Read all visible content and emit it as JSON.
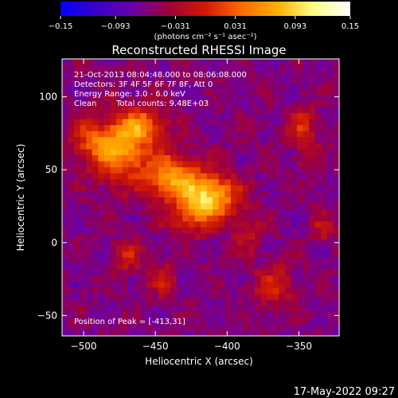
{
  "colorbar": {
    "min": -0.15,
    "max": 0.15,
    "ticks": [
      "-0.15",
      "-0.093",
      "-0.031",
      "0.031",
      "0.093",
      "0.15"
    ],
    "tick_values": [
      -0.15,
      -0.093,
      -0.031,
      0.031,
      0.093,
      0.15
    ],
    "unit_label": "(photons cm⁻² s⁻¹ asec⁻²)",
    "colormap": [
      "#0000ff",
      "#3a00c8",
      "#6a00a8",
      "#a0003a",
      "#d01a00",
      "#ff6a00",
      "#ffb000",
      "#ffff88",
      "#ffffff"
    ]
  },
  "title": "Reconstructed RHESSI Image",
  "annotations": {
    "time_range": "21-Oct-2013 08:04:48.000 to 08:06:08.000",
    "detectors": "Detectors: 3F 4F 5F 6F 7F 8F, Att 0",
    "energy": "Energy Range: 3.0 - 6.0 keV",
    "clean": "Clean",
    "total_counts": "Total counts: 9.48E+03",
    "peak": "Position of Peak = [-413,31]"
  },
  "footer_timestamp": "17-May-2022 09:27",
  "chart_data": {
    "type": "heatmap",
    "title": "Reconstructed RHESSI Image",
    "xlabel": "Heliocentric X (arcsec)",
    "ylabel": "Heliocentric Y (arcsec)",
    "xlim": [
      -515,
      -322
    ],
    "ylim": [
      -64,
      126
    ],
    "x_ticks": [
      -500,
      -450,
      -400,
      -350
    ],
    "y_ticks": [
      -50,
      0,
      50,
      100
    ],
    "x_tick_labels": [
      "−500",
      "−450",
      "−400",
      "−350"
    ],
    "y_tick_labels": [
      "−50",
      "0",
      "50",
      "100"
    ],
    "value_range": [
      -0.15,
      0.15
    ],
    "peak_position": [
      -413,
      31
    ],
    "sources": [
      {
        "x": -413,
        "y": 31,
        "amplitude": 0.15,
        "sigma_x": 14,
        "sigma_y": 11
      },
      {
        "x": -440,
        "y": 45,
        "amplitude": 0.11,
        "sigma_x": 13,
        "sigma_y": 11
      },
      {
        "x": -476,
        "y": 63,
        "amplitude": 0.12,
        "sigma_x": 14,
        "sigma_y": 14
      },
      {
        "x": -460,
        "y": 80,
        "amplitude": 0.09,
        "sigma_x": 12,
        "sigma_y": 9
      },
      {
        "x": -497,
        "y": 72,
        "amplitude": 0.05,
        "sigma_x": 9,
        "sigma_y": 9
      },
      {
        "x": -428,
        "y": 15,
        "amplitude": 0.05,
        "sigma_x": 10,
        "sigma_y": 8
      },
      {
        "x": -385,
        "y": 5,
        "amplitude": 0.04,
        "sigma_x": 7,
        "sigma_y": 8
      },
      {
        "x": -368,
        "y": -30,
        "amplitude": 0.06,
        "sigma_x": 10,
        "sigma_y": 10
      },
      {
        "x": -348,
        "y": 80,
        "amplitude": 0.06,
        "sigma_x": 7,
        "sigma_y": 9
      },
      {
        "x": -470,
        "y": -10,
        "amplitude": 0.05,
        "sigma_x": 8,
        "sigma_y": 8
      },
      {
        "x": -445,
        "y": -25,
        "amplitude": 0.05,
        "sigma_x": 6,
        "sigma_y": 8
      },
      {
        "x": -333,
        "y": 10,
        "amplitude": 0.04,
        "sigma_x": 6,
        "sigma_y": 7
      },
      {
        "x": -345,
        "y": 58,
        "amplitude": 0.03,
        "sigma_x": 6,
        "sigma_y": 6
      }
    ]
  }
}
